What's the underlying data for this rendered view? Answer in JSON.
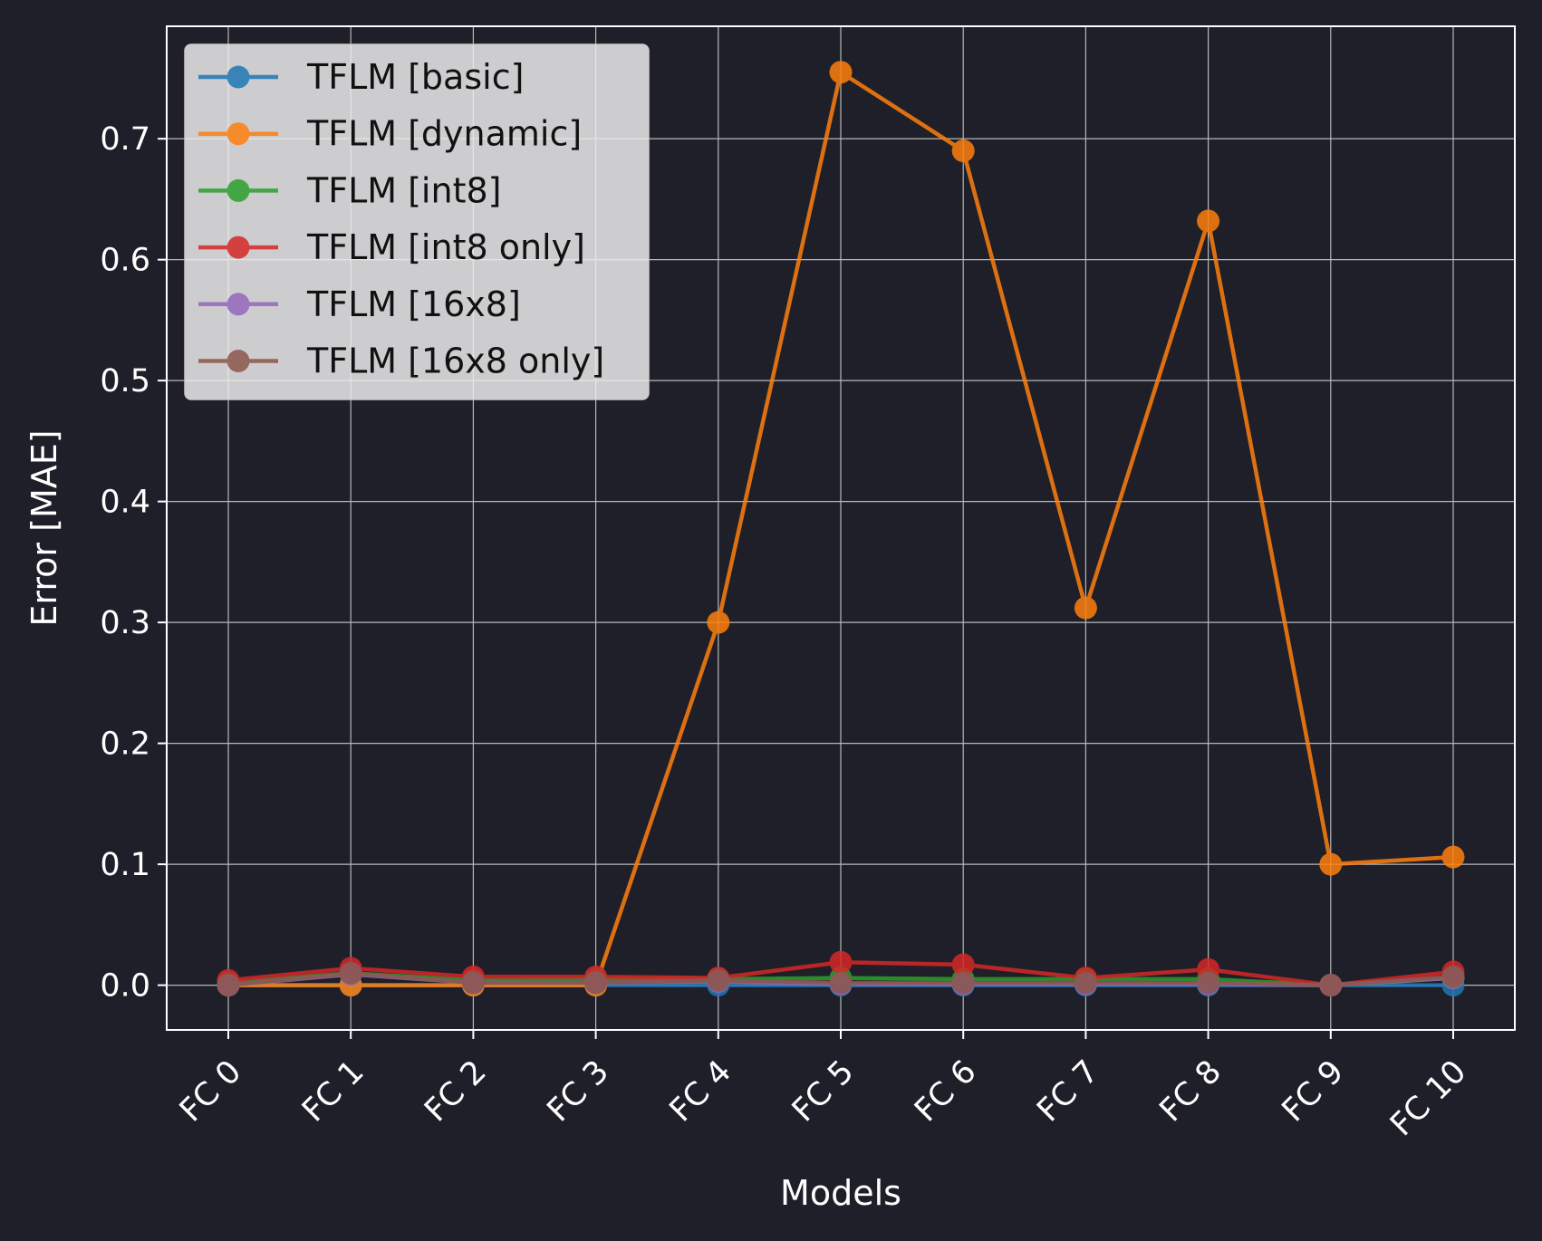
{
  "chart_data": {
    "type": "line",
    "title": "",
    "xlabel": "Models",
    "ylabel": "Error [MAE]",
    "categories": [
      "FC 0",
      "FC 1",
      "FC 2",
      "FC 3",
      "FC 4",
      "FC 5",
      "FC 6",
      "FC 7",
      "FC 8",
      "FC 9",
      "FC 10"
    ],
    "ylim": [
      -0.037,
      0.793
    ],
    "yticks": [
      "0.0",
      "0.1",
      "0.2",
      "0.3",
      "0.4",
      "0.5",
      "0.6",
      "0.7"
    ],
    "grid": true,
    "legend_position": "top-left",
    "series": [
      {
        "name": "TFLM [basic]",
        "color": "#1f77b4",
        "values": [
          0.0,
          0.0,
          0.0,
          0.0,
          0.0,
          0.0,
          0.0,
          0.0,
          0.0,
          0.0,
          0.0
        ]
      },
      {
        "name": "TFLM [dynamic]",
        "color": "#ff7f0e",
        "values": [
          0.0,
          0.0,
          0.0,
          0.0,
          0.3,
          0.755,
          0.69,
          0.312,
          0.632,
          0.1,
          0.106
        ]
      },
      {
        "name": "TFLM [int8]",
        "color": "#2ca02c",
        "values": [
          0.002,
          0.01,
          0.004,
          0.005,
          0.005,
          0.006,
          0.005,
          0.005,
          0.005,
          0.0,
          0.006
        ]
      },
      {
        "name": "TFLM [int8 only]",
        "color": "#d62728",
        "values": [
          0.004,
          0.014,
          0.007,
          0.007,
          0.006,
          0.019,
          0.017,
          0.006,
          0.013,
          0.0,
          0.011
        ]
      },
      {
        "name": "TFLM [16x8]",
        "color": "#9467bd",
        "values": [
          0.0,
          0.009,
          0.002,
          0.002,
          0.003,
          0.001,
          0.001,
          0.001,
          0.001,
          0.0,
          0.006
        ]
      },
      {
        "name": "TFLM [16x8 only]",
        "color": "#8c564b",
        "values": [
          0.0,
          0.01,
          0.002,
          0.002,
          0.004,
          0.002,
          0.002,
          0.002,
          0.002,
          0.0,
          0.007
        ]
      }
    ]
  }
}
